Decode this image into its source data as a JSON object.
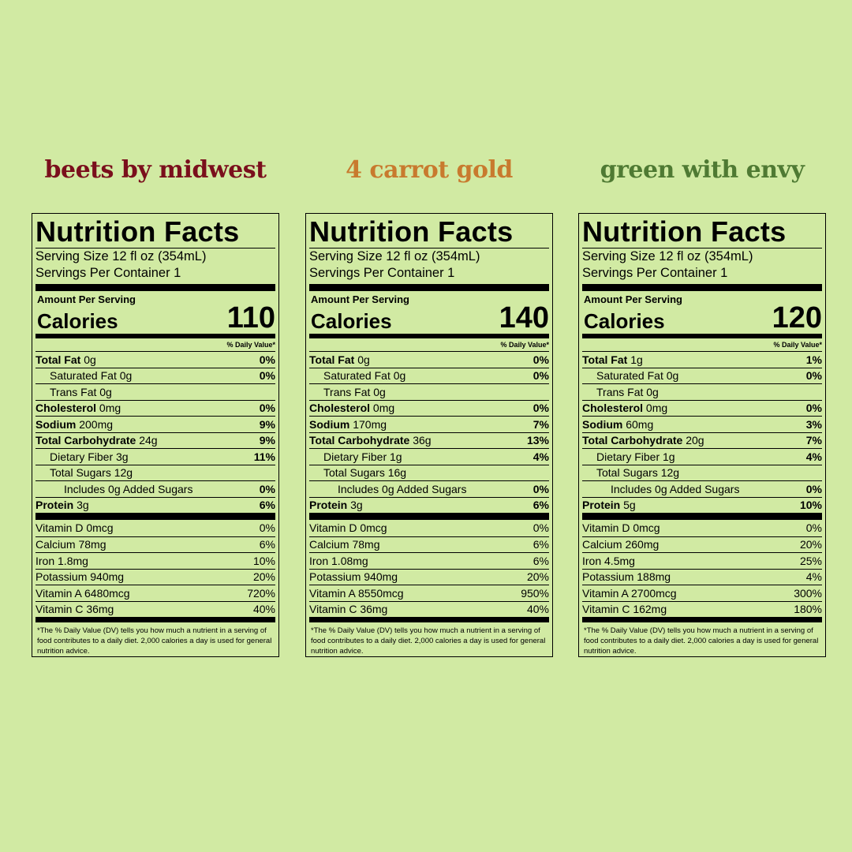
{
  "colors": {
    "background": "#d1eaa3",
    "beets": "#7a0f1c",
    "carrot": "#c87a2e",
    "green": "#4f7a33"
  },
  "products": [
    {
      "title": "beets by midwest",
      "title_color": "#7a0f1c",
      "label": {
        "heading": "Nutrition Facts",
        "serving_size": "Serving Size 12 fl oz (354mL)",
        "servings": "Servings Per Container 1",
        "amount": "Amount Per Serving",
        "calories_label": "Calories",
        "calories": "110",
        "dv_header": "% Daily Value*",
        "total_fat_label": "Total Fat",
        "total_fat": "0g",
        "total_fat_pct": "0%",
        "sat_fat": "Saturated Fat 0g",
        "sat_fat_pct": "0%",
        "trans_fat": "Trans Fat 0g",
        "cholesterol_label": "Cholesterol",
        "cholesterol": "0mg",
        "cholesterol_pct": "0%",
        "sodium_label": "Sodium",
        "sodium": "200mg",
        "sodium_pct": "9%",
        "carb_label": "Total Carbohydrate",
        "carb": "24g",
        "carb_pct": "9%",
        "fiber": "Dietary Fiber 3g",
        "fiber_pct": "11%",
        "sugars": "Total Sugars 12g",
        "added_sugars": "Includes 0g Added Sugars",
        "added_sugars_pct": "0%",
        "protein_label": "Protein",
        "protein": "3g",
        "protein_pct": "6%",
        "vitamins": [
          {
            "name": "Vitamin D 0mcg",
            "pct": "0%"
          },
          {
            "name": "Calcium 78mg",
            "pct": "6%"
          },
          {
            "name": "Iron 1.8mg",
            "pct": "10%"
          },
          {
            "name": "Potassium 940mg",
            "pct": "20%"
          },
          {
            "name": "Vitamin A 6480mcg",
            "pct": "720%"
          },
          {
            "name": "Vitamin C 36mg",
            "pct": "40%"
          }
        ],
        "footnote": "*The % Daily Value (DV) tells you how much a nutrient in a serving of food contributes to a daily diet. 2,000 calories a day is used for general nutrition advice."
      }
    },
    {
      "title": "4 carrot gold",
      "title_color": "#c87a2e",
      "label": {
        "heading": "Nutrition Facts",
        "serving_size": "Serving Size 12 fl oz (354mL)",
        "servings": "Servings Per Container 1",
        "amount": "Amount Per Serving",
        "calories_label": "Calories",
        "calories": "140",
        "dv_header": "% Daily Value*",
        "total_fat_label": "Total Fat",
        "total_fat": "0g",
        "total_fat_pct": "0%",
        "sat_fat": "Saturated Fat 0g",
        "sat_fat_pct": "0%",
        "trans_fat": "Trans Fat 0g",
        "cholesterol_label": "Cholesterol",
        "cholesterol": "0mg",
        "cholesterol_pct": "0%",
        "sodium_label": "Sodium",
        "sodium": "170mg",
        "sodium_pct": "7%",
        "carb_label": "Total Carbohydrate",
        "carb": "36g",
        "carb_pct": "13%",
        "fiber": "Dietary Fiber 1g",
        "fiber_pct": "4%",
        "sugars": "Total Sugars 16g",
        "added_sugars": "Includes 0g Added Sugars",
        "added_sugars_pct": "0%",
        "protein_label": "Protein",
        "protein": "3g",
        "protein_pct": "6%",
        "vitamins": [
          {
            "name": "Vitamin D 0mcg",
            "pct": "0%"
          },
          {
            "name": "Calcium 78mg",
            "pct": "6%"
          },
          {
            "name": "Iron 1.08mg",
            "pct": "6%"
          },
          {
            "name": "Potassium 940mg",
            "pct": "20%"
          },
          {
            "name": "Vitamin A 8550mcg",
            "pct": "950%"
          },
          {
            "name": "Vitamin C 36mg",
            "pct": "40%"
          }
        ],
        "footnote": "*The % Daily Value (DV) tells you how much a nutrient in a serving of food contributes to a daily diet. 2,000 calories a day is used for general nutrition advice."
      }
    },
    {
      "title": "green with envy",
      "title_color": "#4f7a33",
      "label": {
        "heading": "Nutrition Facts",
        "serving_size": "Serving Size 12 fl oz (354mL)",
        "servings": "Servings Per Container 1",
        "amount": "Amount Per Serving",
        "calories_label": "Calories",
        "calories": "120",
        "dv_header": "% Daily Value*",
        "total_fat_label": "Total Fat",
        "total_fat": "1g",
        "total_fat_pct": "1%",
        "sat_fat": "Saturated Fat 0g",
        "sat_fat_pct": "0%",
        "trans_fat": "Trans Fat 0g",
        "cholesterol_label": "Cholesterol",
        "cholesterol": "0mg",
        "cholesterol_pct": "0%",
        "sodium_label": "Sodium",
        "sodium": "60mg",
        "sodium_pct": "3%",
        "carb_label": "Total Carbohydrate",
        "carb": "20g",
        "carb_pct": "7%",
        "fiber": "Dietary Fiber 1g",
        "fiber_pct": "4%",
        "sugars": "Total Sugars 12g",
        "added_sugars": "Includes 0g Added Sugars",
        "added_sugars_pct": "0%",
        "protein_label": "Protein",
        "protein": "5g",
        "protein_pct": "10%",
        "vitamins": [
          {
            "name": "Vitamin D 0mcg",
            "pct": "0%"
          },
          {
            "name": "Calcium 260mg",
            "pct": "20%"
          },
          {
            "name": "Iron 4.5mg",
            "pct": "25%"
          },
          {
            "name": "Potassium 188mg",
            "pct": "4%"
          },
          {
            "name": "Vitamin A 2700mcg",
            "pct": "300%"
          },
          {
            "name": "Vitamin C 162mg",
            "pct": "180%"
          }
        ],
        "footnote": "*The % Daily Value (DV) tells you how much a nutrient in a serving of food contributes to a daily diet. 2,000 calories a day is used for general nutrition advice."
      }
    }
  ]
}
